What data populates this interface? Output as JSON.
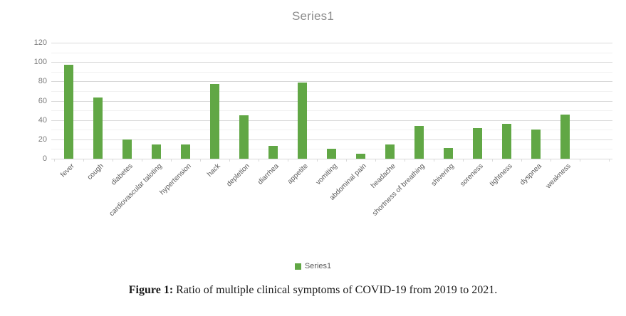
{
  "figure": {
    "caption": {
      "label": "Figure 1:",
      "text": " Ratio of multiple clinical symptoms of COVID-19 from 2019 to 2021."
    }
  },
  "chart_data": {
    "type": "bar",
    "title": "Series1",
    "series_name": "Series1",
    "legend_label": "Series1",
    "legend_position": "bottom",
    "categories": [
      "fever",
      "cough",
      "diabetes",
      "cardiovascular taloting",
      "hypertension",
      "hack",
      "depletion",
      "diarrhea",
      "appetite",
      "vomiting",
      "abdominal pain",
      "headache",
      "shortness of breathing",
      "shivering",
      "soreness",
      "tightness",
      "dyspnea",
      "weakness"
    ],
    "values": [
      97,
      63,
      20,
      15,
      15,
      77,
      45,
      13,
      79,
      10,
      5,
      15,
      34,
      11,
      32,
      36,
      30,
      46
    ],
    "xlabel": "",
    "ylabel": "",
    "ylim": [
      0,
      120
    ],
    "yticks": [
      0,
      20,
      40,
      60,
      80,
      100,
      120
    ],
    "minor_grid_step": 10,
    "grid": "horizontal",
    "bar_color": "#61a745",
    "gridline_color": "#d9d9d9",
    "axis_text_color": "#595959",
    "title_color": "#8c8c8c"
  }
}
